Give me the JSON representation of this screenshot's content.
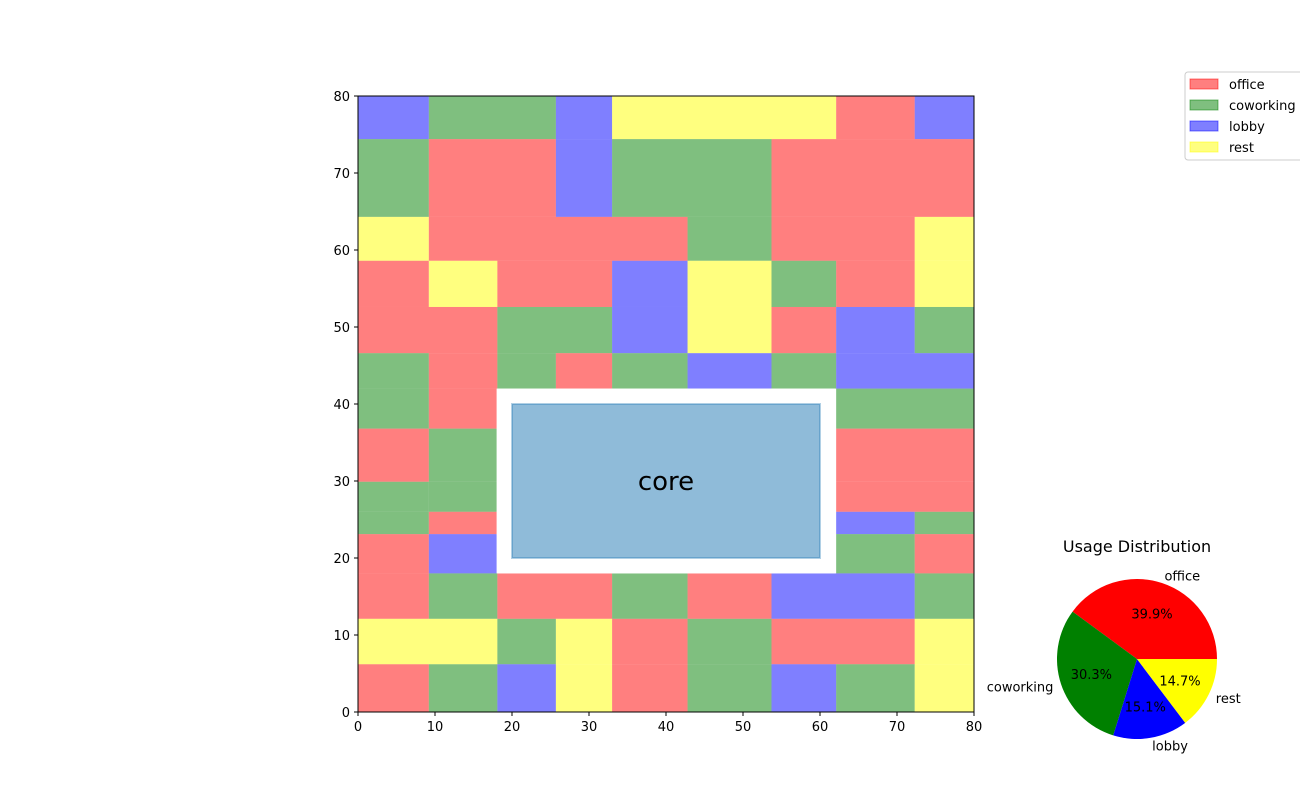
{
  "colors": {
    "office": "#ff0000",
    "coworking": "#008000",
    "lobby": "#0000ff",
    "rest": "#ffff00",
    "core": "#1f77b4"
  },
  "chart_data": [
    {
      "type": "heatmap",
      "title": "",
      "xlabel": "",
      "ylabel": "",
      "xlim": [
        0,
        80
      ],
      "ylim": [
        0,
        80
      ],
      "xticks": [
        "0",
        "10",
        "20",
        "30",
        "40",
        "50",
        "60",
        "70",
        "80"
      ],
      "yticks": [
        "0",
        "10",
        "20",
        "30",
        "40",
        "50",
        "60",
        "70",
        "80"
      ],
      "grid": false,
      "core": {
        "label": "core",
        "x0": 20,
        "y0": 20,
        "x1": 60,
        "y1": 40,
        "clearance": 2
      },
      "cells": [
        {
          "x0": 0,
          "x1": 9.2,
          "y0": 74.4,
          "y1": 80,
          "use": "lobby"
        },
        {
          "x0": 9.2,
          "x1": 25.7,
          "y0": 74.4,
          "y1": 80,
          "use": "coworking"
        },
        {
          "x0": 25.7,
          "x1": 33.0,
          "y0": 74.4,
          "y1": 80,
          "use": "lobby"
        },
        {
          "x0": 33.0,
          "x1": 62.1,
          "y0": 74.4,
          "y1": 80,
          "use": "rest"
        },
        {
          "x0": 62.1,
          "x1": 72.3,
          "y0": 74.4,
          "y1": 80,
          "use": "office"
        },
        {
          "x0": 72.3,
          "x1": 80,
          "y0": 74.4,
          "y1": 80,
          "use": "lobby"
        },
        {
          "x0": 0,
          "x1": 9.2,
          "y0": 64.3,
          "y1": 74.4,
          "use": "coworking"
        },
        {
          "x0": 9.2,
          "x1": 25.7,
          "y0": 64.3,
          "y1": 74.4,
          "use": "office"
        },
        {
          "x0": 25.7,
          "x1": 33.0,
          "y0": 64.3,
          "y1": 74.4,
          "use": "lobby"
        },
        {
          "x0": 33.0,
          "x1": 53.7,
          "y0": 64.3,
          "y1": 74.4,
          "use": "coworking"
        },
        {
          "x0": 53.7,
          "x1": 80,
          "y0": 64.3,
          "y1": 74.4,
          "use": "office"
        },
        {
          "x0": 0,
          "x1": 9.2,
          "y0": 58.6,
          "y1": 64.3,
          "use": "rest"
        },
        {
          "x0": 9.2,
          "x1": 42.8,
          "y0": 58.6,
          "y1": 64.3,
          "use": "office"
        },
        {
          "x0": 42.8,
          "x1": 53.7,
          "y0": 58.6,
          "y1": 64.3,
          "use": "coworking"
        },
        {
          "x0": 53.7,
          "x1": 72.3,
          "y0": 58.6,
          "y1": 64.3,
          "use": "office"
        },
        {
          "x0": 72.3,
          "x1": 80,
          "y0": 58.6,
          "y1": 64.3,
          "use": "rest"
        },
        {
          "x0": 0,
          "x1": 9.2,
          "y0": 52.6,
          "y1": 58.6,
          "use": "office"
        },
        {
          "x0": 9.2,
          "x1": 18.1,
          "y0": 52.6,
          "y1": 58.6,
          "use": "rest"
        },
        {
          "x0": 18.1,
          "x1": 33.0,
          "y0": 52.6,
          "y1": 58.6,
          "use": "office"
        },
        {
          "x0": 33.0,
          "x1": 42.8,
          "y0": 52.6,
          "y1": 58.6,
          "use": "lobby"
        },
        {
          "x0": 42.8,
          "x1": 53.7,
          "y0": 52.6,
          "y1": 58.6,
          "use": "rest"
        },
        {
          "x0": 53.7,
          "x1": 62.1,
          "y0": 52.6,
          "y1": 58.6,
          "use": "coworking"
        },
        {
          "x0": 62.1,
          "x1": 72.3,
          "y0": 52.6,
          "y1": 58.6,
          "use": "office"
        },
        {
          "x0": 72.3,
          "x1": 80,
          "y0": 52.6,
          "y1": 58.6,
          "use": "rest"
        },
        {
          "x0": 0,
          "x1": 18.1,
          "y0": 46.6,
          "y1": 52.6,
          "use": "office"
        },
        {
          "x0": 18.1,
          "x1": 33.0,
          "y0": 46.6,
          "y1": 52.6,
          "use": "coworking"
        },
        {
          "x0": 33.0,
          "x1": 42.8,
          "y0": 46.6,
          "y1": 52.6,
          "use": "lobby"
        },
        {
          "x0": 42.8,
          "x1": 53.7,
          "y0": 46.6,
          "y1": 52.6,
          "use": "rest"
        },
        {
          "x0": 53.7,
          "x1": 62.1,
          "y0": 46.6,
          "y1": 52.6,
          "use": "office"
        },
        {
          "x0": 62.1,
          "x1": 72.3,
          "y0": 46.6,
          "y1": 52.6,
          "use": "lobby"
        },
        {
          "x0": 72.3,
          "x1": 80,
          "y0": 46.6,
          "y1": 52.6,
          "use": "coworking"
        },
        {
          "x0": 0,
          "x1": 9.2,
          "y0": 42.0,
          "y1": 46.6,
          "use": "coworking"
        },
        {
          "x0": 9.2,
          "x1": 18.1,
          "y0": 42.0,
          "y1": 46.6,
          "use": "office"
        },
        {
          "x0": 18.1,
          "x1": 25.7,
          "y0": 42.0,
          "y1": 46.6,
          "use": "coworking"
        },
        {
          "x0": 25.7,
          "x1": 33.0,
          "y0": 42.0,
          "y1": 46.6,
          "use": "office"
        },
        {
          "x0": 33.0,
          "x1": 42.8,
          "y0": 42.0,
          "y1": 46.6,
          "use": "coworking"
        },
        {
          "x0": 42.8,
          "x1": 53.7,
          "y0": 42.0,
          "y1": 46.6,
          "use": "lobby"
        },
        {
          "x0": 53.7,
          "x1": 62.1,
          "y0": 42.0,
          "y1": 46.6,
          "use": "coworking"
        },
        {
          "x0": 62.1,
          "x1": 80,
          "y0": 42.0,
          "y1": 46.6,
          "use": "lobby"
        },
        {
          "x0": 0,
          "x1": 9.2,
          "y0": 36.8,
          "y1": 42.0,
          "use": "coworking"
        },
        {
          "x0": 9.2,
          "x1": 18.1,
          "y0": 36.8,
          "y1": 42.0,
          "use": "office"
        },
        {
          "x0": 62.1,
          "x1": 80,
          "y0": 36.8,
          "y1": 42.0,
          "use": "coworking"
        },
        {
          "x0": 0,
          "x1": 9.2,
          "y0": 29.9,
          "y1": 36.8,
          "use": "office"
        },
        {
          "x0": 9.2,
          "x1": 18.1,
          "y0": 29.9,
          "y1": 36.8,
          "use": "coworking"
        },
        {
          "x0": 62.1,
          "x1": 80,
          "y0": 29.9,
          "y1": 36.8,
          "use": "office"
        },
        {
          "x0": 0,
          "x1": 9.2,
          "y0": 26.0,
          "y1": 29.9,
          "use": "coworking"
        },
        {
          "x0": 9.2,
          "x1": 18.1,
          "y0": 26.0,
          "y1": 29.9,
          "use": "coworking"
        },
        {
          "x0": 62.1,
          "x1": 80,
          "y0": 26.0,
          "y1": 29.9,
          "use": "office"
        },
        {
          "x0": 0,
          "x1": 9.2,
          "y0": 23.1,
          "y1": 26.0,
          "use": "coworking"
        },
        {
          "x0": 9.2,
          "x1": 18.1,
          "y0": 23.1,
          "y1": 26.0,
          "use": "office"
        },
        {
          "x0": 62.1,
          "x1": 72.3,
          "y0": 23.1,
          "y1": 26.0,
          "use": "lobby"
        },
        {
          "x0": 72.3,
          "x1": 80,
          "y0": 23.1,
          "y1": 26.0,
          "use": "coworking"
        },
        {
          "x0": 0,
          "x1": 9.2,
          "y0": 18.0,
          "y1": 23.1,
          "use": "office"
        },
        {
          "x0": 9.2,
          "x1": 18.1,
          "y0": 18.0,
          "y1": 23.1,
          "use": "lobby"
        },
        {
          "x0": 62.1,
          "x1": 72.3,
          "y0": 18.0,
          "y1": 23.1,
          "use": "coworking"
        },
        {
          "x0": 72.3,
          "x1": 80,
          "y0": 18.0,
          "y1": 23.1,
          "use": "office"
        },
        {
          "x0": 0,
          "x1": 9.2,
          "y0": 12.1,
          "y1": 18.0,
          "use": "office"
        },
        {
          "x0": 9.2,
          "x1": 18.1,
          "y0": 12.1,
          "y1": 18.0,
          "use": "coworking"
        },
        {
          "x0": 18.1,
          "x1": 33.0,
          "y0": 12.1,
          "y1": 18.0,
          "use": "office"
        },
        {
          "x0": 33.0,
          "x1": 42.8,
          "y0": 12.1,
          "y1": 18.0,
          "use": "coworking"
        },
        {
          "x0": 42.8,
          "x1": 53.7,
          "y0": 12.1,
          "y1": 18.0,
          "use": "office"
        },
        {
          "x0": 53.7,
          "x1": 72.3,
          "y0": 12.1,
          "y1": 18.0,
          "use": "lobby"
        },
        {
          "x0": 72.3,
          "x1": 80,
          "y0": 12.1,
          "y1": 18.0,
          "use": "coworking"
        },
        {
          "x0": 0,
          "x1": 18.1,
          "y0": 6.2,
          "y1": 12.1,
          "use": "rest"
        },
        {
          "x0": 18.1,
          "x1": 25.7,
          "y0": 6.2,
          "y1": 12.1,
          "use": "coworking"
        },
        {
          "x0": 25.7,
          "x1": 33.0,
          "y0": 6.2,
          "y1": 12.1,
          "use": "rest"
        },
        {
          "x0": 33.0,
          "x1": 42.8,
          "y0": 6.2,
          "y1": 12.1,
          "use": "office"
        },
        {
          "x0": 42.8,
          "x1": 53.7,
          "y0": 6.2,
          "y1": 12.1,
          "use": "coworking"
        },
        {
          "x0": 53.7,
          "x1": 72.3,
          "y0": 6.2,
          "y1": 12.1,
          "use": "office"
        },
        {
          "x0": 72.3,
          "x1": 80,
          "y0": 6.2,
          "y1": 12.1,
          "use": "rest"
        },
        {
          "x0": 0,
          "x1": 9.2,
          "y0": 0,
          "y1": 6.2,
          "use": "office"
        },
        {
          "x0": 9.2,
          "x1": 18.1,
          "y0": 0,
          "y1": 6.2,
          "use": "coworking"
        },
        {
          "x0": 18.1,
          "x1": 25.7,
          "y0": 0,
          "y1": 6.2,
          "use": "lobby"
        },
        {
          "x0": 25.7,
          "x1": 33.0,
          "y0": 0,
          "y1": 6.2,
          "use": "rest"
        },
        {
          "x0": 33.0,
          "x1": 42.8,
          "y0": 0,
          "y1": 6.2,
          "use": "office"
        },
        {
          "x0": 42.8,
          "x1": 53.7,
          "y0": 0,
          "y1": 6.2,
          "use": "coworking"
        },
        {
          "x0": 53.7,
          "x1": 62.1,
          "y0": 0,
          "y1": 6.2,
          "use": "lobby"
        },
        {
          "x0": 62.1,
          "x1": 72.3,
          "y0": 0,
          "y1": 6.2,
          "use": "coworking"
        },
        {
          "x0": 72.3,
          "x1": 80,
          "y0": 0,
          "y1": 6.2,
          "use": "rest"
        }
      ],
      "legend": {
        "placement": "upper-right, outside axes",
        "entries": [
          "office",
          "coworking",
          "lobby",
          "rest"
        ]
      }
    },
    {
      "type": "pie",
      "title": "Usage Distribution",
      "categories": [
        "office",
        "coworking",
        "lobby",
        "rest"
      ],
      "values": [
        39.9,
        30.3,
        15.1,
        14.7
      ],
      "percent_labels": [
        "39.9%",
        "30.3%",
        "15.1%",
        "14.7%"
      ],
      "colors": [
        "#ff0000",
        "#008000",
        "#0000ff",
        "#ffff00"
      ],
      "start_angle": 0
    }
  ]
}
